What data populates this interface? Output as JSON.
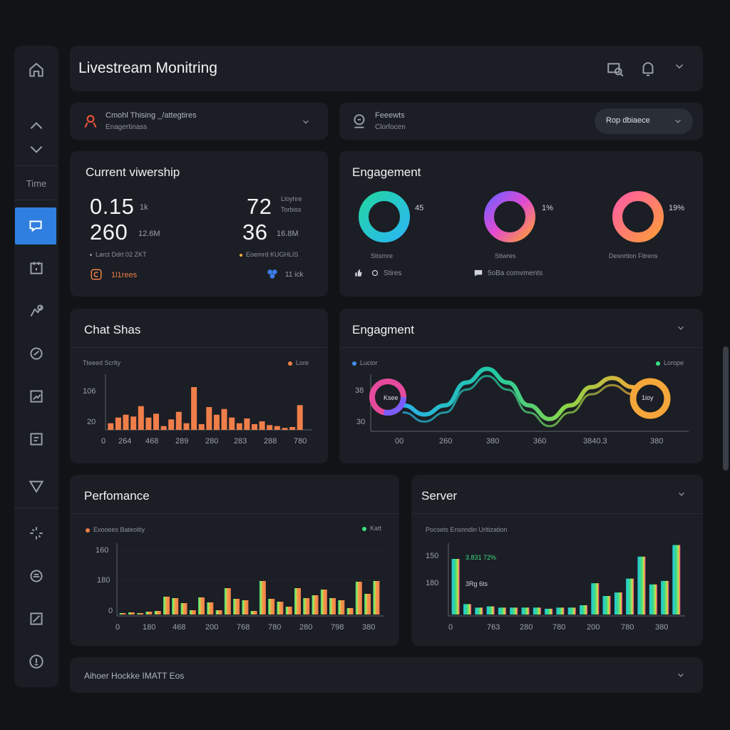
{
  "header": {
    "title": "Livestream Monitring"
  },
  "sidebar": {
    "time_label": "Time"
  },
  "filters": {
    "left": {
      "line1": "Cmohl Thising _/attegtires",
      "line2": "Enagertinass"
    },
    "right": {
      "line1": "Feeewts",
      "line2": "Clorfocen",
      "pill_label": "Rop dbiaece"
    }
  },
  "viewership": {
    "title": "Current viwership",
    "left": {
      "value1": "0.15",
      "unit1": "1k",
      "value2": "260",
      "unit2": "12.6M",
      "caption": "Larct Ddrt 02 ZKT",
      "footer": "1l1rees"
    },
    "right": {
      "value1": "72",
      "unit1a": "Lloyhre",
      "unit1b": "Torbiss",
      "value2": "36",
      "unit2": "16.8M",
      "caption": "Eoemrd KUGHLIS",
      "footer": "11 ick"
    }
  },
  "engagement_rings": {
    "title": "Engagement",
    "rings": [
      {
        "value": "45",
        "label": "Stisrnre"
      },
      {
        "value": "1%",
        "label": "Stiwres"
      },
      {
        "value": "19%",
        "label": "Desnrtion Fitrens"
      }
    ],
    "footer_left": "Stires",
    "footer_right": "5oBa comvments"
  },
  "chat_chart": {
    "title": "Chat Shas",
    "legend_left": "Tteeed Scrlty",
    "legend_right": "Lore",
    "y_ticks": [
      "106",
      "20"
    ],
    "x_ticks": [
      "0",
      "264",
      "468",
      "289",
      "280",
      "283",
      "288",
      "780"
    ],
    "colors": {
      "bar": "#f07e4a"
    }
  },
  "engagement_wave": {
    "title": "Engagment",
    "legend_left": "Lucior",
    "legend_right": "Lorope",
    "y_ticks": [
      "38",
      "30"
    ],
    "x_ticks": [
      "00",
      "260",
      "380",
      "360",
      "3840.3",
      "380"
    ],
    "start_label": "Ksee",
    "end_label": "1ioy"
  },
  "performance_chart": {
    "title": "Perfomance",
    "legend_left": "Exooees Bateoltiy",
    "legend_right": "Katt",
    "y_ticks": [
      "160",
      "180",
      "0"
    ],
    "x_ticks": [
      "0",
      "180",
      "468",
      "200",
      "768",
      "780",
      "280",
      "798",
      "380"
    ]
  },
  "server_chart": {
    "title": "Server",
    "subtitle": "Pocsets Ensnndin Urltization",
    "y_ticks": [
      "150",
      "180",
      "0"
    ],
    "x_ticks": [
      "0",
      "763",
      "280",
      "780",
      "200",
      "780",
      "380"
    ],
    "annot1": "3.831 72%",
    "annot2": "3Rg 6ts"
  },
  "footer": {
    "label": "Aihoer Hockke IMATT Eos"
  },
  "chart_data": [
    {
      "type": "bar",
      "title": "Chat Shas",
      "ylim": [
        0,
        150
      ],
      "values": [
        14,
        26,
        32,
        28,
        50,
        26,
        34,
        8,
        22,
        38,
        14,
        90,
        12,
        48,
        32,
        44,
        26,
        14,
        24,
        12,
        18,
        10,
        8,
        4,
        6,
        52
      ]
    },
    {
      "type": "line",
      "title": "Engagment",
      "series": [
        {
          "name": "Lucior",
          "values": [
            30,
            26,
            30,
            40,
            46,
            40,
            30,
            24,
            30,
            38,
            42,
            38
          ]
        }
      ]
    },
    {
      "type": "bar",
      "title": "Perfomance",
      "ylim": [
        0,
        200
      ],
      "values": [
        4,
        6,
        4,
        8,
        10,
        50,
        46,
        32,
        12,
        48,
        34,
        12,
        74,
        44,
        40,
        10,
        94,
        44,
        36,
        22,
        74,
        46,
        54,
        70,
        46,
        40,
        18,
        92,
        58,
        94
      ]
    },
    {
      "type": "bar",
      "title": "Server",
      "ylim": [
        0,
        160
      ],
      "values": [
        96,
        18,
        12,
        14,
        12,
        12,
        12,
        12,
        10,
        12,
        12,
        16,
        54,
        32,
        38,
        62,
        100,
        52,
        58,
        120
      ]
    }
  ]
}
